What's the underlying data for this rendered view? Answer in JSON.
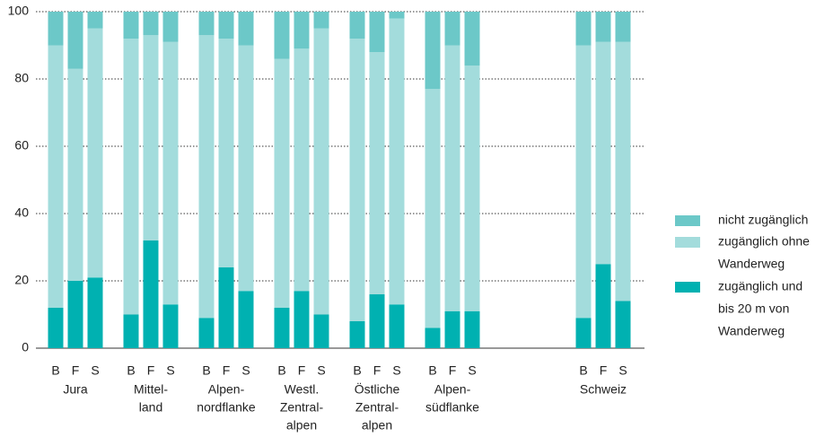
{
  "chart_data": {
    "type": "stacked-bar",
    "categories": [
      "B",
      "F",
      "S",
      "B",
      "F",
      "S",
      "B",
      "F",
      "S",
      "B",
      "F",
      "S",
      "B",
      "F",
      "S",
      "B",
      "F",
      "S",
      "B",
      "F",
      "S"
    ],
    "groups": [
      [
        "Jura"
      ],
      [
        "Mittel-",
        "land"
      ],
      [
        "Alpen-",
        "nordflanke"
      ],
      [
        "Westl.",
        "Zentral-",
        "alpen"
      ],
      [
        "Östliche",
        "Zentral-",
        "alpen"
      ],
      [
        "Alpen-",
        "südflanke"
      ],
      [
        "Schweiz"
      ]
    ],
    "series": [
      {
        "name": [
          "zugänglich und",
          "bis 20 m von",
          "Wanderweg"
        ],
        "color": "#00b1b1",
        "values": [
          12,
          20,
          21,
          10,
          32,
          13,
          9,
          24,
          17,
          12,
          17,
          10,
          8,
          16,
          13,
          6,
          11,
          11,
          9,
          25,
          14
        ]
      },
      {
        "name": [
          "zugänglich ohne",
          "Wanderweg"
        ],
        "color": "#a3dcdc",
        "values": [
          78,
          63,
          74,
          82,
          61,
          78,
          84,
          68,
          73,
          74,
          72,
          85,
          84,
          72,
          85,
          71,
          79,
          73,
          81,
          66,
          77
        ]
      },
      {
        "name": [
          "nicht zugänglich"
        ],
        "color": "#6cc8c8",
        "values": [
          10,
          17,
          5,
          8,
          7,
          9,
          7,
          8,
          10,
          14,
          11,
          5,
          8,
          12,
          2,
          23,
          10,
          16,
          10,
          9,
          9
        ]
      }
    ],
    "ylim": [
      0,
      100
    ],
    "yticks": [
      0,
      20,
      40,
      60,
      80,
      100
    ],
    "grid": true
  }
}
